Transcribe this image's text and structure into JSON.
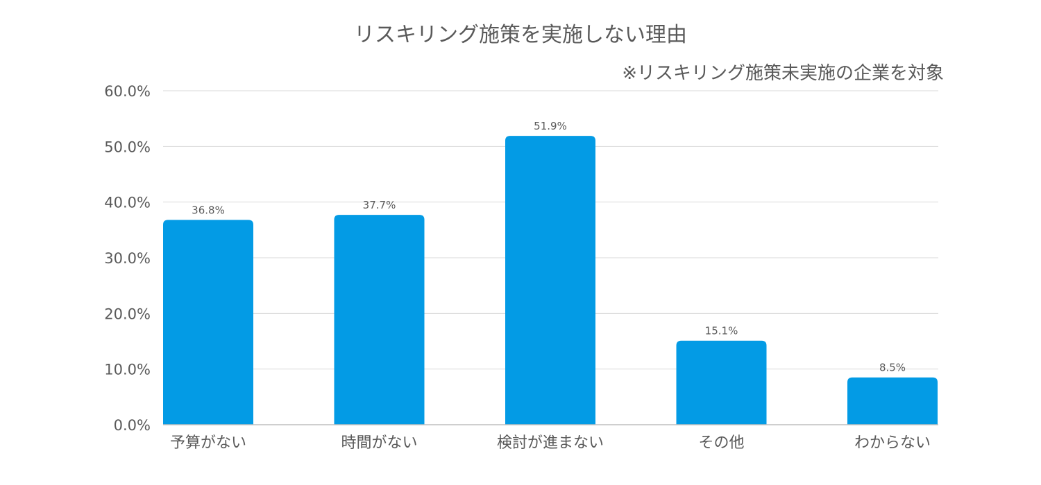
{
  "chart_data": {
    "type": "bar",
    "title": "リスキリング施策を実施しない理由",
    "subtitle": "※リスキリング施策未実施の企業を対象",
    "categories": [
      "予算がない",
      "時間がない",
      "検討が進まない",
      "その他",
      "わからない"
    ],
    "values": [
      36.8,
      37.7,
      51.9,
      15.1,
      8.5
    ],
    "data_labels": [
      "36.8%",
      "37.7%",
      "51.9%",
      "15.1%",
      "8.5%"
    ],
    "y_ticks": [
      0,
      10,
      20,
      30,
      40,
      50,
      60
    ],
    "y_tick_labels": [
      "0.0%",
      "10.0%",
      "20.0%",
      "30.0%",
      "40.0%",
      "50.0%",
      "60.0%"
    ],
    "ylim": [
      0,
      60
    ],
    "xlabel": "",
    "ylabel": "",
    "grid": true,
    "legend": "none",
    "bar_color": "#039be5"
  }
}
